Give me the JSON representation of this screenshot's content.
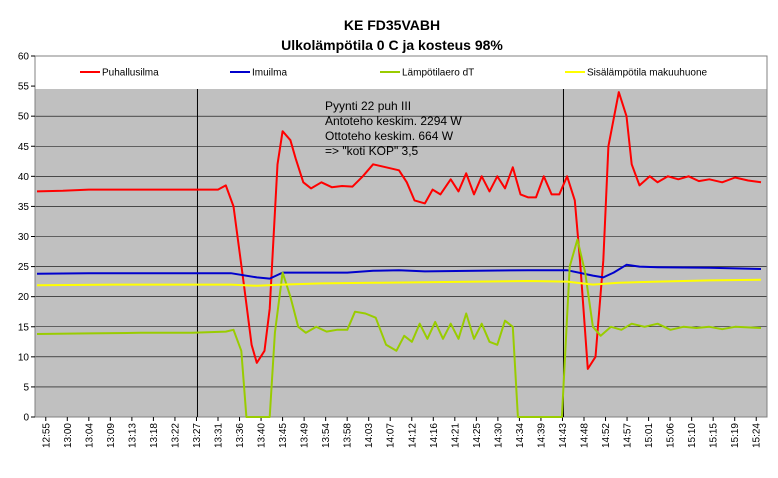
{
  "chart_data": {
    "type": "line",
    "title": "KE FD35VABH",
    "subtitle": "Ulkolämpötila 0 C ja kosteus 98%",
    "xlabel": "",
    "ylabel": "",
    "ylim": [
      0,
      60
    ],
    "yticks": [
      "0",
      "5",
      "10",
      "15",
      "20",
      "25",
      "30",
      "35",
      "40",
      "45",
      "50",
      "55",
      "60"
    ],
    "grid": "horizontal",
    "legend_position": "top",
    "plot_background": "#c0c0c0",
    "xticks": [
      "12:55",
      "13:00",
      "13:04",
      "13:09",
      "13:13",
      "13:18",
      "13:22",
      "13:27",
      "13:31",
      "13:36",
      "13:40",
      "13:45",
      "13:49",
      "13:54",
      "13:58",
      "14:03",
      "14:07",
      "14:12",
      "14:16",
      "14:21",
      "14:25",
      "14:30",
      "14:34",
      "14:39",
      "14:43",
      "14:48",
      "14:52",
      "14:57",
      "15:01",
      "15:06",
      "15:10",
      "15:15",
      "15:19",
      "15:24"
    ],
    "vertical_markers": [
      "13:27",
      "14:43"
    ],
    "annotation": [
      "Pyynti 22 puh III",
      "Antoteho keskim. 2294 W",
      "Ottoteho keskim. 664 W",
      "=> \"koti KOP\" 3,5"
    ],
    "series": [
      {
        "name": "Puhallusilma",
        "color": "#ff0000",
        "points": [
          [
            0,
            37.5
          ],
          [
            1,
            37.6
          ],
          [
            2,
            37.8
          ],
          [
            3,
            37.8
          ],
          [
            4,
            37.8
          ],
          [
            5,
            37.8
          ],
          [
            6,
            37.8
          ],
          [
            7,
            37.8
          ],
          [
            7.3,
            38.5
          ],
          [
            7.6,
            35
          ],
          [
            8,
            22
          ],
          [
            8.3,
            12
          ],
          [
            8.5,
            9
          ],
          [
            8.8,
            11
          ],
          [
            9.0,
            18
          ],
          [
            9.3,
            42
          ],
          [
            9.5,
            47.5
          ],
          [
            9.8,
            46
          ],
          [
            10,
            43
          ],
          [
            10.3,
            39
          ],
          [
            10.6,
            38
          ],
          [
            11,
            39
          ],
          [
            11.4,
            38.2
          ],
          [
            11.8,
            38.4
          ],
          [
            12.2,
            38.3
          ],
          [
            12.6,
            40
          ],
          [
            13,
            42
          ],
          [
            13.5,
            41.5
          ],
          [
            14,
            41
          ],
          [
            14.3,
            39
          ],
          [
            14.6,
            36
          ],
          [
            15,
            35.5
          ],
          [
            15.3,
            37.8
          ],
          [
            15.6,
            37
          ],
          [
            16,
            39.5
          ],
          [
            16.3,
            37.5
          ],
          [
            16.6,
            40.5
          ],
          [
            16.9,
            37
          ],
          [
            17.2,
            40
          ],
          [
            17.5,
            37.5
          ],
          [
            17.8,
            40
          ],
          [
            18.1,
            38
          ],
          [
            18.4,
            41.5
          ],
          [
            18.7,
            37
          ],
          [
            19,
            36.5
          ],
          [
            19.3,
            36.5
          ],
          [
            19.6,
            40
          ],
          [
            19.9,
            37
          ],
          [
            20.2,
            37
          ],
          [
            20.5,
            40
          ],
          [
            20.8,
            36
          ],
          [
            21,
            26
          ],
          [
            21.3,
            8
          ],
          [
            21.6,
            10
          ],
          [
            21.9,
            26
          ],
          [
            22.1,
            45
          ],
          [
            22.5,
            54
          ],
          [
            22.8,
            50
          ],
          [
            23,
            42
          ],
          [
            23.3,
            38.5
          ],
          [
            23.7,
            40
          ],
          [
            24,
            39
          ],
          [
            24.4,
            40
          ],
          [
            24.8,
            39.5
          ],
          [
            25.2,
            40
          ],
          [
            25.6,
            39.2
          ],
          [
            26,
            39.5
          ],
          [
            26.5,
            39
          ],
          [
            27,
            39.8
          ],
          [
            27.5,
            39.3
          ],
          [
            28,
            39
          ]
        ],
        "x_unit": "index"
      },
      {
        "name": "Imuilma",
        "color": "#0000cc",
        "points": [
          [
            0,
            23.8
          ],
          [
            2,
            23.9
          ],
          [
            4,
            23.9
          ],
          [
            6,
            23.9
          ],
          [
            7.5,
            23.9
          ],
          [
            8.5,
            23.2
          ],
          [
            9.0,
            23.0
          ],
          [
            9.5,
            24.0
          ],
          [
            10,
            24.0
          ],
          [
            12,
            24.0
          ],
          [
            13,
            24.3
          ],
          [
            14,
            24.4
          ],
          [
            15,
            24.2
          ],
          [
            17,
            24.3
          ],
          [
            19,
            24.4
          ],
          [
            20.5,
            24.4
          ],
          [
            21.5,
            23.5
          ],
          [
            21.9,
            23.2
          ],
          [
            22.3,
            24
          ],
          [
            22.8,
            25.3
          ],
          [
            23.3,
            25.0
          ],
          [
            24,
            24.9
          ],
          [
            26,
            24.8
          ],
          [
            28,
            24.6
          ]
        ],
        "x_unit": "index"
      },
      {
        "name": "Lämpötilaero dT",
        "color": "#99cc00",
        "points": [
          [
            0,
            13.8
          ],
          [
            2,
            13.9
          ],
          [
            4,
            14.0
          ],
          [
            6,
            14.0
          ],
          [
            7.3,
            14.2
          ],
          [
            7.6,
            14.5
          ],
          [
            7.9,
            11
          ],
          [
            8.1,
            0
          ],
          [
            8.4,
            0
          ],
          [
            8.7,
            0
          ],
          [
            9.0,
            0
          ],
          [
            9.2,
            14
          ],
          [
            9.5,
            24
          ],
          [
            9.8,
            20
          ],
          [
            10.1,
            15
          ],
          [
            10.4,
            14
          ],
          [
            10.8,
            15
          ],
          [
            11.2,
            14.2
          ],
          [
            11.6,
            14.5
          ],
          [
            12,
            14.5
          ],
          [
            12.3,
            17.5
          ],
          [
            12.7,
            17.2
          ],
          [
            13.1,
            16.5
          ],
          [
            13.5,
            12
          ],
          [
            13.9,
            11
          ],
          [
            14.2,
            13.5
          ],
          [
            14.5,
            12.5
          ],
          [
            14.8,
            15.5
          ],
          [
            15.1,
            13
          ],
          [
            15.4,
            15.8
          ],
          [
            15.7,
            13
          ],
          [
            16,
            15.5
          ],
          [
            16.3,
            13
          ],
          [
            16.6,
            17.2
          ],
          [
            16.9,
            13
          ],
          [
            17.2,
            15.5
          ],
          [
            17.5,
            12.5
          ],
          [
            17.8,
            12
          ],
          [
            18.1,
            16
          ],
          [
            18.4,
            15
          ],
          [
            18.6,
            0
          ],
          [
            18.9,
            0
          ],
          [
            19.2,
            0
          ],
          [
            19.6,
            0
          ],
          [
            20.0,
            0
          ],
          [
            20.3,
            0
          ],
          [
            20.6,
            25
          ],
          [
            20.9,
            29.5
          ],
          [
            21.2,
            24
          ],
          [
            21.5,
            15
          ],
          [
            21.8,
            13.5
          ],
          [
            22.2,
            15
          ],
          [
            22.6,
            14.5
          ],
          [
            23,
            15.5
          ],
          [
            23.5,
            15
          ],
          [
            24,
            15.5
          ],
          [
            24.5,
            14.5
          ],
          [
            25,
            15
          ],
          [
            25.5,
            14.8
          ],
          [
            26,
            15
          ],
          [
            26.5,
            14.6
          ],
          [
            27,
            15
          ],
          [
            28,
            14.8
          ]
        ],
        "x_unit": "index"
      },
      {
        "name": "Sisälämpötila makuuhuone",
        "color": "#ffff00",
        "points": [
          [
            0,
            21.9
          ],
          [
            3,
            22.0
          ],
          [
            6,
            22.0
          ],
          [
            7.5,
            22.0
          ],
          [
            8.5,
            21.8
          ],
          [
            9.5,
            22.0
          ],
          [
            11,
            22.2
          ],
          [
            13,
            22.3
          ],
          [
            15,
            22.4
          ],
          [
            17,
            22.5
          ],
          [
            19,
            22.6
          ],
          [
            20.5,
            22.5
          ],
          [
            21.5,
            22.0
          ],
          [
            22.5,
            22.3
          ],
          [
            24,
            22.5
          ],
          [
            26,
            22.7
          ],
          [
            28,
            22.8
          ]
        ],
        "x_unit": "index"
      }
    ]
  }
}
